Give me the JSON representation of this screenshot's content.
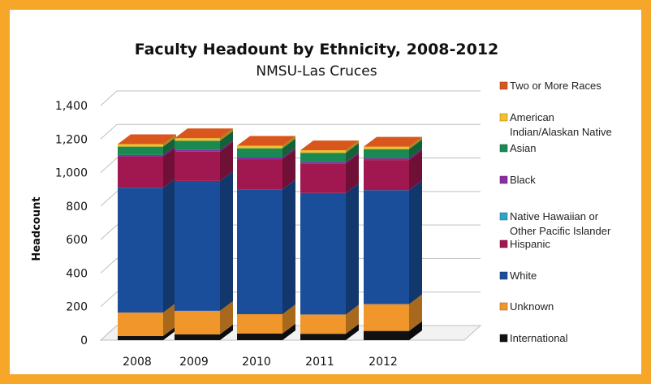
{
  "chart_data": {
    "type": "bar",
    "stacked": true,
    "three_d": true,
    "title": "Faculty Headount by Ethnicity, 2008-2012",
    "subtitle": "NMSU-Las Cruces",
    "xlabel": "",
    "ylabel": "Headcount",
    "ylim": [
      0,
      1400
    ],
    "yticks": [
      0,
      200,
      400,
      600,
      800,
      1000,
      1200,
      1400
    ],
    "ytick_labels": [
      "0",
      "200",
      "400",
      "600",
      "800",
      "1,000",
      "1,200",
      "1,400"
    ],
    "grid": true,
    "legend_position": "right",
    "categories": [
      "2008",
      "2009",
      "2010",
      "2011",
      "2012"
    ],
    "series": [
      {
        "name": "International",
        "color": "#111111",
        "values": [
          25,
          35,
          40,
          38,
          55
        ]
      },
      {
        "name": "Unknown",
        "color": "#f0962a",
        "values": [
          140,
          140,
          115,
          115,
          160
        ]
      },
      {
        "name": "White",
        "color": "#1a4e9a",
        "values": [
          745,
          775,
          745,
          725,
          680
        ]
      },
      {
        "name": "Hispanic",
        "color": "#a1174f",
        "values": [
          185,
          175,
          180,
          175,
          180
        ]
      },
      {
        "name": "Native Hawaiian or Other Pacific Islander",
        "color": "#2ba6c8",
        "values": [
          0,
          0,
          0,
          0,
          0
        ]
      },
      {
        "name": "Black",
        "color": "#8a2da0",
        "values": [
          10,
          10,
          10,
          10,
          10
        ]
      },
      {
        "name": "Asian",
        "color": "#1a8a52",
        "values": [
          50,
          55,
          55,
          55,
          55
        ]
      },
      {
        "name": "American Indian/Alaskan Native",
        "color": "#f2c12b",
        "values": [
          15,
          15,
          15,
          15,
          15
        ]
      },
      {
        "name": "Two or More Races",
        "color": "#d9561c",
        "values": [
          0,
          0,
          0,
          0,
          0
        ]
      }
    ],
    "legend_order": [
      {
        "label_lines": [
          "Two or More Races"
        ],
        "series": "Two or More Races"
      },
      {
        "label_lines": [
          "American",
          "Indian/Alaskan Native"
        ],
        "series": "American Indian/Alaskan Native"
      },
      {
        "label_lines": [
          "Asian"
        ],
        "series": "Asian"
      },
      {
        "label_lines": [
          "Black"
        ],
        "series": "Black"
      },
      {
        "label_lines": [
          "Native Hawaiian or",
          "Other Pacific Islander"
        ],
        "series": "Native Hawaiian or Other Pacific Islander"
      },
      {
        "label_lines": [
          "Hispanic"
        ],
        "series": "Hispanic"
      },
      {
        "label_lines": [
          "White"
        ],
        "series": "White"
      },
      {
        "label_lines": [
          "Unknown"
        ],
        "series": "Unknown"
      },
      {
        "label_lines": [
          "International"
        ],
        "series": "International"
      }
    ]
  }
}
